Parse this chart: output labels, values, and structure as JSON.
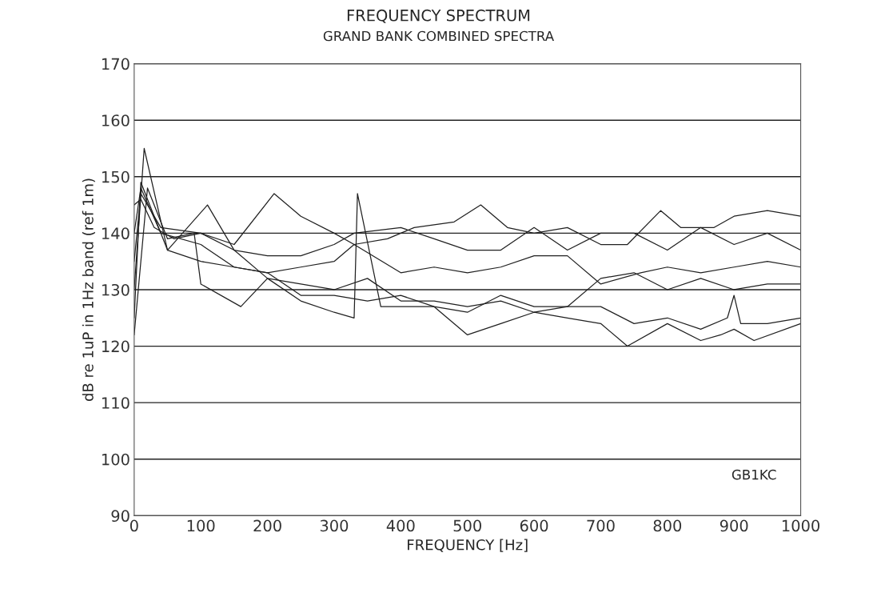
{
  "chart_data": {
    "type": "line",
    "title": "FREQUENCY SPECTRUM",
    "subtitle": "GRAND BANK COMBINED SPECTRA",
    "xlabel": "FREQUENCY [Hz]",
    "ylabel": "dB re 1uP in 1Hz band (ref 1m)",
    "annotations": [
      "GB1KC"
    ],
    "series": [
      {
        "color": "#202020",
        "x": [
          0,
          10,
          30,
          60,
          100,
          150,
          210,
          250,
          300,
          330,
          380,
          420,
          480,
          520,
          560,
          600,
          650,
          700,
          740,
          790,
          820,
          870,
          900,
          950,
          1000
        ],
        "values": [
          145,
          146,
          141,
          139,
          140,
          138,
          147,
          143,
          140,
          138,
          139,
          141,
          142,
          145,
          141,
          140,
          141,
          138,
          138,
          144,
          141,
          141,
          143,
          144,
          143
        ]
      },
      {
        "color": "#202020",
        "x": [
          0,
          10,
          40,
          100,
          150,
          200,
          250,
          300,
          330,
          400,
          450,
          500,
          550,
          600,
          650,
          700,
          750,
          800,
          850,
          900,
          950,
          1000
        ],
        "values": [
          135,
          147,
          141,
          140,
          137,
          136,
          136,
          138,
          140,
          141,
          139,
          137,
          137,
          141,
          137,
          140,
          140,
          137,
          141,
          138,
          140,
          137
        ]
      },
      {
        "color": "#202020",
        "x": [
          0,
          10,
          40,
          100,
          150,
          200,
          250,
          300,
          330,
          400,
          450,
          500,
          550,
          600,
          650,
          700,
          760,
          800,
          850,
          900,
          950,
          1000
        ],
        "values": [
          140,
          148,
          140,
          138,
          134,
          133,
          134,
          135,
          138,
          133,
          134,
          133,
          134,
          136,
          136,
          131,
          133,
          134,
          133,
          134,
          135,
          134
        ]
      },
      {
        "color": "#202020",
        "x": [
          0,
          15,
          50,
          100,
          150,
          200,
          250,
          300,
          350,
          400,
          450,
          500,
          550,
          600,
          650,
          700,
          750,
          800,
          850,
          900,
          950,
          1000
        ],
        "values": [
          130,
          155,
          137,
          135,
          134,
          133,
          129,
          129,
          128,
          129,
          127,
          126,
          129,
          127,
          127,
          132,
          133,
          130,
          132,
          130,
          131,
          131
        ]
      },
      {
        "color": "#202020",
        "x": [
          0,
          20,
          50,
          90,
          100,
          160,
          200,
          250,
          300,
          330,
          335,
          370,
          450,
          500,
          550,
          600,
          650,
          700,
          740,
          800,
          850,
          880,
          900,
          930,
          1000
        ],
        "values": [
          122,
          148,
          139,
          140,
          131,
          127,
          132,
          128,
          126,
          125,
          147,
          127,
          127,
          122,
          124,
          126,
          125,
          124,
          120,
          124,
          121,
          122,
          123,
          121,
          124
        ]
      },
      {
        "color": "#202020",
        "x": [
          0,
          10,
          50,
          110,
          150,
          200,
          300,
          350,
          400,
          450,
          500,
          550,
          600,
          650,
          700,
          750,
          800,
          850,
          890,
          900,
          910,
          950,
          1000
        ],
        "values": [
          125,
          149,
          137,
          145,
          137,
          132,
          130,
          132,
          128,
          128,
          127,
          128,
          126,
          127,
          127,
          124,
          125,
          123,
          125,
          129,
          124,
          124,
          125
        ]
      }
    ],
    "xlim": [
      0,
      1000
    ],
    "xticks": [
      0,
      100,
      200,
      300,
      400,
      500,
      600,
      700,
      800,
      900,
      1000
    ],
    "ylim": [
      90,
      170
    ],
    "yticks": [
      90,
      100,
      110,
      120,
      130,
      140,
      150,
      160,
      170
    ],
    "grid": "y",
    "legend": false,
    "marker": "none",
    "line_style": "solid"
  }
}
